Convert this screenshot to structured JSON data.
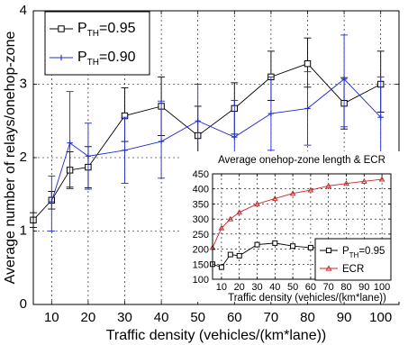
{
  "chart_data": [
    {
      "type": "line",
      "title": "",
      "xlabel": "Traffic density (vehicles/(km*lane))",
      "ylabel": "Average number of relays/onehop-zone",
      "xlim": [
        5,
        105
      ],
      "ylim": [
        0,
        4
      ],
      "grid": true,
      "x_ticks": [
        10,
        20,
        30,
        40,
        50,
        60,
        70,
        80,
        90,
        100
      ],
      "y_ticks": [
        0,
        1,
        2,
        3,
        4
      ],
      "legend": {
        "position": "top-left",
        "entries": [
          {
            "label_main": "P",
            "label_sub": "TH",
            "label_tail": "=0.95",
            "color": "#000000",
            "marker": "square"
          },
          {
            "label_main": "P",
            "label_sub": "TH",
            "label_tail": "=0.90",
            "color": "#1f2bd1",
            "marker": "plus"
          }
        ]
      },
      "series": [
        {
          "name": "P_TH=0.95",
          "color": "#000000",
          "marker": "square",
          "x": [
            5,
            10,
            15,
            20,
            30,
            40,
            50,
            60,
            70,
            80,
            90,
            100
          ],
          "values": [
            1.15,
            1.42,
            1.83,
            1.87,
            2.57,
            2.7,
            2.3,
            2.67,
            3.1,
            3.28,
            2.74,
            3.0
          ],
          "err_low": [
            0.1,
            0.12,
            0.25,
            0.28,
            0.35,
            0.4,
            0.35,
            0.35,
            0.32,
            0.32,
            0.35,
            0.38
          ],
          "err_high": [
            0.1,
            0.12,
            0.25,
            0.28,
            0.38,
            0.4,
            0.4,
            0.35,
            0.35,
            0.35,
            0.35,
            0.45
          ]
        },
        {
          "name": "P_TH=0.90",
          "color": "#1f2bd1",
          "marker": "plus",
          "x": [
            10,
            15,
            20,
            30,
            40,
            50,
            60,
            70,
            80,
            90,
            100
          ],
          "values": [
            1.4,
            2.2,
            2.02,
            2.1,
            2.22,
            2.5,
            2.28,
            2.6,
            2.67,
            3.07,
            2.55
          ],
          "err_low": [
            0.4,
            0.6,
            0.45,
            0.45,
            0.5,
            0.55,
            0.45,
            0.5,
            0.5,
            0.65,
            0.55
          ],
          "err_high": [
            0.35,
            0.7,
            0.45,
            0.45,
            0.55,
            0.5,
            0.5,
            0.5,
            0.5,
            0.6,
            0.55
          ]
        }
      ]
    },
    {
      "type": "line",
      "title": "Average onehop-zone length & ECR",
      "xlabel": "Traffic density (vehicles/(km*lane))",
      "ylabel": "",
      "xlim": [
        5,
        105
      ],
      "ylim": [
        100,
        450
      ],
      "grid": true,
      "x_ticks": [
        10,
        20,
        30,
        40,
        50,
        60,
        70,
        80,
        90,
        100
      ],
      "y_ticks": [
        100,
        150,
        200,
        250,
        300,
        350,
        400,
        450
      ],
      "legend": {
        "position": "bottom-right",
        "entries": [
          {
            "label_main": "P",
            "label_sub": "TH",
            "label_tail": "=0.95",
            "color": "#000000",
            "marker": "square"
          },
          {
            "label_main": "ECR",
            "label_sub": "",
            "label_tail": "",
            "color": "#c62828",
            "marker": "triangle"
          }
        ]
      },
      "series": [
        {
          "name": "P_TH=0.95",
          "color": "#000000",
          "marker": "square",
          "x": [
            5,
            10,
            15,
            20,
            30,
            40,
            50,
            60,
            70,
            80,
            90,
            100
          ],
          "values": [
            150,
            140,
            182,
            178,
            215,
            220,
            210,
            205,
            205,
            202,
            196,
            195
          ]
        },
        {
          "name": "ECR",
          "color": "#c62828",
          "marker": "triangle",
          "x": [
            5,
            10,
            15,
            20,
            30,
            40,
            50,
            60,
            70,
            80,
            90,
            100
          ],
          "values": [
            205,
            270,
            300,
            322,
            350,
            368,
            385,
            396,
            410,
            418,
            425,
            432
          ]
        }
      ]
    }
  ]
}
